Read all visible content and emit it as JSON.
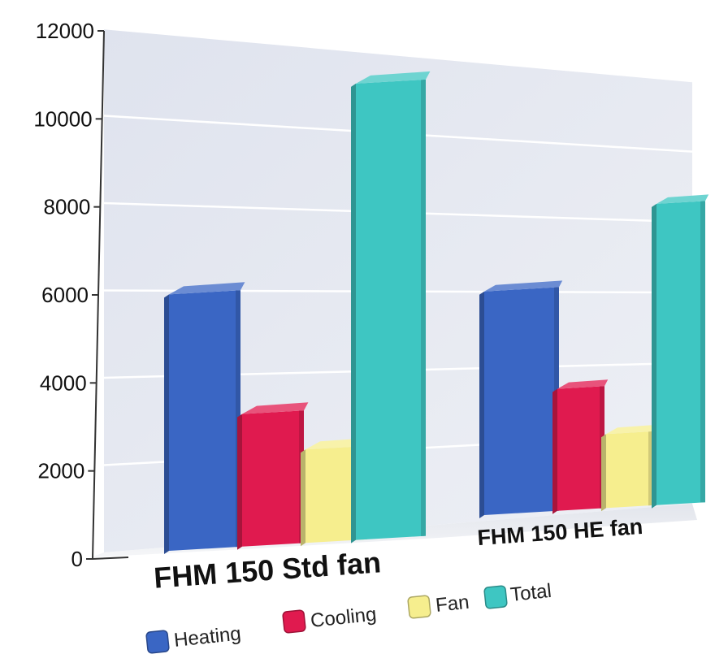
{
  "chart_data": {
    "type": "bar",
    "title": "",
    "xlabel": "",
    "ylabel": "",
    "ylim": [
      0,
      12000
    ],
    "y_ticks": [
      "0",
      "2000",
      "4000",
      "6000",
      "8000",
      "10000",
      "12000"
    ],
    "y_tick_values": [
      0,
      2000,
      4000,
      6000,
      8000,
      10000,
      12000
    ],
    "categories": [
      "FHM 150 Std fan",
      "FHM 150 HE fan"
    ],
    "series": [
      {
        "name": "Heating",
        "values": [
          5900,
          6050
        ],
        "color": "#3a66c4"
      },
      {
        "name": "Cooling",
        "values": [
          3050,
          3300
        ],
        "color": "#e01a4f"
      },
      {
        "name": "Fan",
        "values": [
          2150,
          2000
        ],
        "color": "#f6ee8e"
      },
      {
        "name": "Total",
        "values": [
          10500,
          8150
        ],
        "color": "#3ec6c2"
      }
    ],
    "grid": true,
    "legend_position": "bottom",
    "style": "3d"
  }
}
